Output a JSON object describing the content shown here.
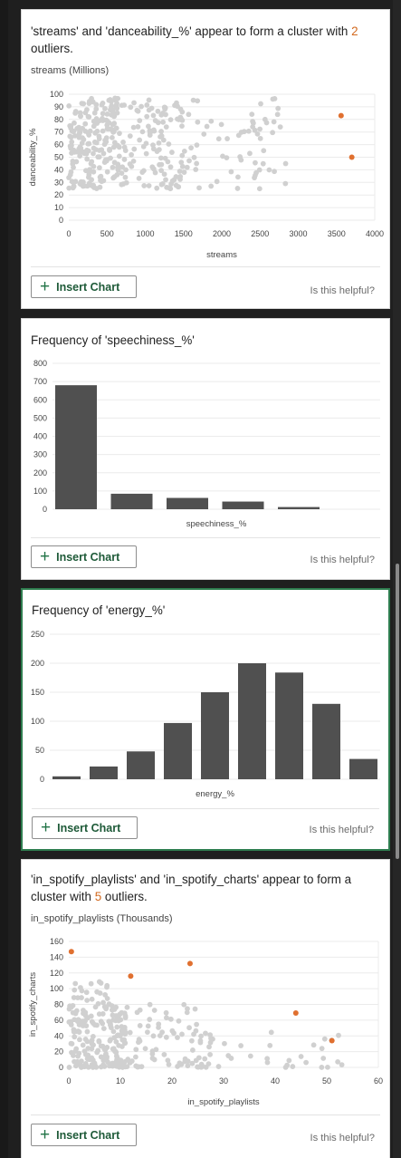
{
  "cards": [
    {
      "title_pre": "'streams' and 'danceability_%' appear to form a cluster with ",
      "title_num": "2",
      "title_post": " outliers.",
      "subtitle": "streams (Millions)",
      "insert_label": "Insert Chart",
      "helpful_label": "Is this helpful?"
    },
    {
      "title": "Frequency of 'speechiness_%'",
      "insert_label": "Insert Chart",
      "helpful_label": "Is this helpful?"
    },
    {
      "title": "Frequency of 'energy_%'",
      "insert_label": "Insert Chart",
      "helpful_label": "Is this helpful?"
    },
    {
      "title_pre": "'in_spotify_playlists' and 'in_spotify_charts' appear to form a cluster with ",
      "title_num": "5",
      "title_post": " outliers.",
      "subtitle": "in_spotify_playlists (Thousands)",
      "insert_label": "Insert Chart",
      "helpful_label": "Is this helpful?"
    }
  ],
  "colors": {
    "bar": "#505050",
    "point": "#d0d0d0",
    "outlier": "#e07030",
    "accent": "#217346"
  },
  "chart_data": [
    {
      "type": "scatter",
      "xlabel": "streams",
      "ylabel": "danceability_%",
      "xticks": [
        0,
        500,
        1000,
        1500,
        2000,
        2500,
        3000,
        3500,
        4000
      ],
      "yticks": [
        0,
        10,
        20,
        30,
        40,
        50,
        60,
        70,
        80,
        90,
        100
      ],
      "xlim": [
        0,
        4000
      ],
      "ylim": [
        0,
        100
      ],
      "outliers": [
        [
          3560,
          83
        ],
        [
          3700,
          50
        ]
      ]
    },
    {
      "type": "bar",
      "xlabel": "speechiness_%",
      "yticks": [
        0,
        100,
        200,
        300,
        400,
        500,
        600,
        700,
        800
      ],
      "ylim": [
        0,
        800
      ],
      "values": [
        680,
        85,
        62,
        42,
        12
      ]
    },
    {
      "type": "bar",
      "xlabel": "energy_%",
      "yticks": [
        0,
        50,
        100,
        150,
        200,
        250
      ],
      "ylim": [
        0,
        250
      ],
      "values": [
        5,
        22,
        48,
        97,
        150,
        200,
        184,
        130,
        35
      ]
    },
    {
      "type": "scatter",
      "xlabel": "in_spotify_playlists",
      "ylabel": "in_spotify_charts",
      "xticks": [
        0,
        10,
        20,
        30,
        40,
        50,
        60
      ],
      "yticks": [
        0,
        20,
        40,
        60,
        80,
        100,
        120,
        140,
        160
      ],
      "xlim": [
        0,
        60
      ],
      "ylim": [
        0,
        160
      ],
      "outliers": [
        [
          0.5,
          147
        ],
        [
          12,
          116
        ],
        [
          23.5,
          132
        ],
        [
          44,
          69
        ],
        [
          51,
          34
        ]
      ]
    }
  ]
}
